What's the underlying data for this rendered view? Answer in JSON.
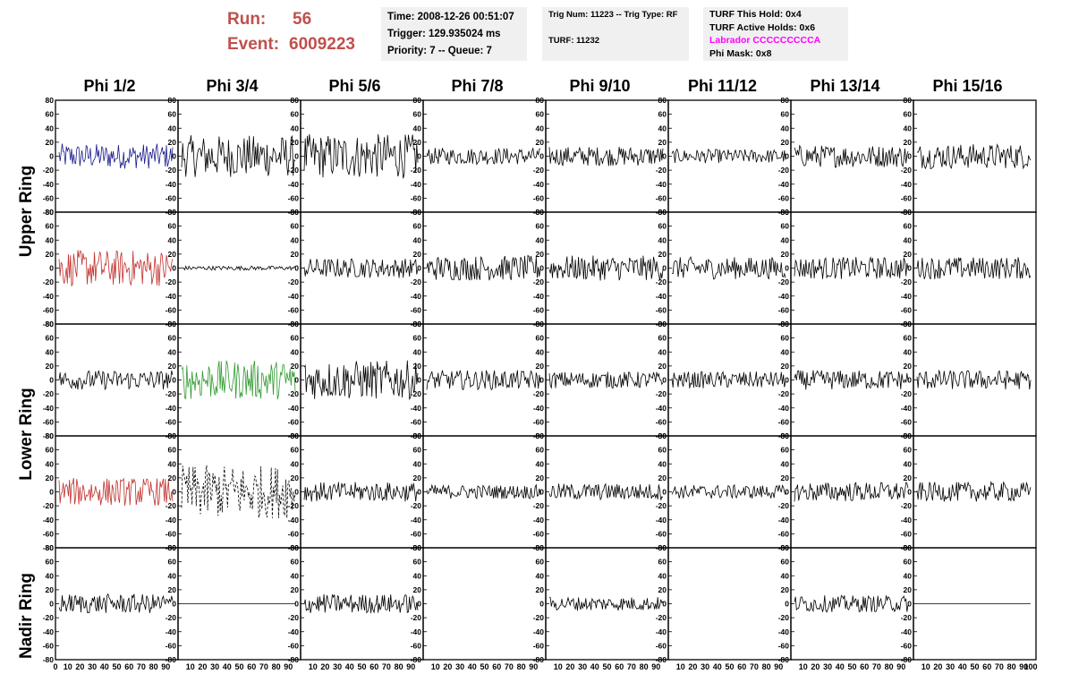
{
  "header": {
    "run_label": "Run:",
    "run_value": "56",
    "event_label": "Event:",
    "event_value": "6009223",
    "time_box": {
      "time": "Time: 2008-12-26 00:51:07",
      "trigger": "Trigger: 129.935024 ms",
      "priority": "Priority: 7 -- Queue: 7"
    },
    "trig_box": {
      "trig": "Trig Num: 11223 -- Trig Type: RF",
      "turf": "TURF: 11232"
    },
    "turf_box": {
      "this_hold": "TURF This Hold: 0x4",
      "active_holds": "TURF Active Holds: 0x6",
      "labrador": "Labrador CCCCCCCCCA",
      "phi_mask": "Phi Mask: 0x8"
    },
    "colors": {
      "title_red": "#c0504d",
      "labrador_magenta": "#ff00ff",
      "info_bg": "#f0f0f0"
    }
  },
  "columns": [
    "Phi 1/2",
    "Phi 3/4",
    "Phi 5/6",
    "Phi 7/8",
    "Phi 9/10",
    "Phi 11/12",
    "Phi 13/14",
    "Phi 15/16"
  ],
  "rows": [
    "Upper Ring",
    "Lower Ring",
    "Nadir Ring"
  ],
  "chart_data": {
    "type": "line",
    "description_axes": "grid of waveform panels, 8 columns x 5 rows",
    "ylim": [
      -80,
      80
    ],
    "xlim": [
      0,
      100
    ],
    "y_ticks": [
      -80,
      -60,
      -40,
      -20,
      0,
      20,
      40,
      60,
      80
    ],
    "x_ticks": [
      0,
      10,
      20,
      30,
      40,
      50,
      60,
      70,
      80,
      90,
      100
    ],
    "x_tick_labels_per_panel": [
      "10",
      "20",
      "30",
      "40",
      "50",
      "60",
      "70",
      "80",
      "90"
    ],
    "first_panel_x_labels": [
      "0",
      "10",
      "20",
      "30",
      "40",
      "50",
      "60",
      "70",
      "80",
      "90"
    ],
    "last_panel_extra_label": "100",
    "panel_rows": [
      {
        "row": "Upper Ring (top)",
        "panels": [
          {
            "color": "#1a1a8c",
            "amplitude": 18,
            "style": "solid"
          },
          {
            "color": "#000000",
            "amplitude": 30,
            "style": "solid"
          },
          {
            "color": "#000000",
            "amplitude": 32,
            "style": "solid"
          },
          {
            "color": "#000000",
            "amplitude": 12,
            "style": "solid"
          },
          {
            "color": "#000000",
            "amplitude": 14,
            "style": "solid"
          },
          {
            "color": "#000000",
            "amplitude": 10,
            "style": "solid"
          },
          {
            "color": "#000000",
            "amplitude": 16,
            "style": "solid"
          },
          {
            "color": "#000000",
            "amplitude": 18,
            "style": "solid"
          }
        ]
      },
      {
        "row": "Upper Ring (bottom)",
        "panels": [
          {
            "color": "#c0302c",
            "amplitude": 26,
            "style": "solid"
          },
          {
            "color": "#000000",
            "amplitude": 3,
            "style": "solid"
          },
          {
            "color": "#000000",
            "amplitude": 14,
            "style": "solid"
          },
          {
            "color": "#000000",
            "amplitude": 18,
            "style": "solid"
          },
          {
            "color": "#000000",
            "amplitude": 18,
            "style": "solid"
          },
          {
            "color": "#000000",
            "amplitude": 16,
            "style": "solid"
          },
          {
            "color": "#000000",
            "amplitude": 16,
            "style": "solid"
          },
          {
            "color": "#000000",
            "amplitude": 16,
            "style": "solid"
          }
        ]
      },
      {
        "row": "Lower Ring (top)",
        "panels": [
          {
            "color": "#000000",
            "amplitude": 14,
            "style": "solid"
          },
          {
            "color": "#2e9a2e",
            "amplitude": 28,
            "style": "solid"
          },
          {
            "color": "#000000",
            "amplitude": 28,
            "style": "solid"
          },
          {
            "color": "#000000",
            "amplitude": 14,
            "style": "solid"
          },
          {
            "color": "#000000",
            "amplitude": 12,
            "style": "solid"
          },
          {
            "color": "#000000",
            "amplitude": 12,
            "style": "solid"
          },
          {
            "color": "#000000",
            "amplitude": 14,
            "style": "solid"
          },
          {
            "color": "#000000",
            "amplitude": 14,
            "style": "solid"
          }
        ]
      },
      {
        "row": "Lower Ring (bottom)",
        "panels": [
          {
            "color": "#c0302c",
            "amplitude": 20,
            "style": "solid"
          },
          {
            "color": "#000000",
            "amplitude": 38,
            "style": "dashed"
          },
          {
            "color": "#000000",
            "amplitude": 14,
            "style": "solid"
          },
          {
            "color": "#000000",
            "amplitude": 10,
            "style": "solid"
          },
          {
            "color": "#000000",
            "amplitude": 12,
            "style": "solid"
          },
          {
            "color": "#000000",
            "amplitude": 10,
            "style": "solid"
          },
          {
            "color": "#000000",
            "amplitude": 14,
            "style": "solid"
          },
          {
            "color": "#000000",
            "amplitude": 14,
            "style": "solid"
          }
        ]
      },
      {
        "row": "Nadir Ring",
        "panels": [
          {
            "color": "#000000",
            "amplitude": 14,
            "style": "solid"
          },
          {
            "color": "#000000",
            "amplitude": 0,
            "style": "solid"
          },
          {
            "color": "#000000",
            "amplitude": 14,
            "style": "solid"
          },
          {
            "color": "#000000",
            "amplitude": 0,
            "style": "none"
          },
          {
            "color": "#000000",
            "amplitude": 10,
            "style": "solid"
          },
          {
            "color": "#000000",
            "amplitude": 0,
            "style": "none"
          },
          {
            "color": "#000000",
            "amplitude": 12,
            "style": "solid"
          },
          {
            "color": "#000000",
            "amplitude": 0,
            "style": "solid"
          }
        ]
      }
    ]
  }
}
